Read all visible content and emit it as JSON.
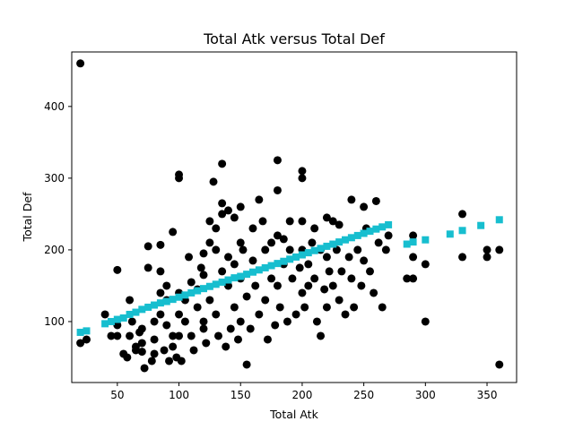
{
  "chart_data": {
    "type": "scatter",
    "title": "Total Atk versus Total Def",
    "xlabel": "Total Atk",
    "ylabel": "Total Def",
    "xlim": [
      13,
      374
    ],
    "ylim": [
      15,
      476
    ],
    "xticks": [
      50,
      100,
      150,
      200,
      250,
      300,
      350
    ],
    "yticks": [
      100,
      200,
      300,
      400
    ],
    "grid": false,
    "colors": {
      "points": "#000000",
      "fit": "#17becf"
    },
    "series": [
      {
        "marker": "circle",
        "points": [
          [
            20,
            460
          ],
          [
            20,
            70
          ],
          [
            25,
            75
          ],
          [
            45,
            80
          ],
          [
            40,
            110
          ],
          [
            50,
            80
          ],
          [
            50,
            95
          ],
          [
            50,
            172
          ],
          [
            55,
            55
          ],
          [
            58,
            50
          ],
          [
            60,
            80
          ],
          [
            60,
            130
          ],
          [
            62,
            100
          ],
          [
            65,
            60
          ],
          [
            65,
            65
          ],
          [
            68,
            85
          ],
          [
            70,
            58
          ],
          [
            70,
            70
          ],
          [
            70,
            90
          ],
          [
            72,
            35
          ],
          [
            75,
            205
          ],
          [
            75,
            175
          ],
          [
            78,
            45
          ],
          [
            80,
            55
          ],
          [
            80,
            75
          ],
          [
            80,
            100
          ],
          [
            85,
            207
          ],
          [
            85,
            170
          ],
          [
            85,
            110
          ],
          [
            85,
            140
          ],
          [
            88,
            60
          ],
          [
            90,
            95
          ],
          [
            90,
            150
          ],
          [
            90,
            130
          ],
          [
            92,
            45
          ],
          [
            95,
            225
          ],
          [
            95,
            80
          ],
          [
            95,
            65
          ],
          [
            98,
            50
          ],
          [
            100,
            305
          ],
          [
            100,
            300
          ],
          [
            100,
            80
          ],
          [
            100,
            110
          ],
          [
            100,
            140
          ],
          [
            102,
            45
          ],
          [
            105,
            100
          ],
          [
            105,
            130
          ],
          [
            108,
            190
          ],
          [
            110,
            80
          ],
          [
            110,
            155
          ],
          [
            112,
            60
          ],
          [
            115,
            120
          ],
          [
            115,
            145
          ],
          [
            118,
            175
          ],
          [
            120,
            195
          ],
          [
            120,
            90
          ],
          [
            120,
            100
          ],
          [
            120,
            165
          ],
          [
            122,
            70
          ],
          [
            125,
            210
          ],
          [
            125,
            240
          ],
          [
            125,
            130
          ],
          [
            128,
            295
          ],
          [
            130,
            200
          ],
          [
            130,
            230
          ],
          [
            130,
            110
          ],
          [
            132,
            80
          ],
          [
            135,
            320
          ],
          [
            135,
            265
          ],
          [
            135,
            250
          ],
          [
            135,
            170
          ],
          [
            138,
            65
          ],
          [
            140,
            255
          ],
          [
            140,
            150
          ],
          [
            140,
            190
          ],
          [
            142,
            90
          ],
          [
            145,
            245
          ],
          [
            145,
            180
          ],
          [
            145,
            120
          ],
          [
            148,
            75
          ],
          [
            150,
            260
          ],
          [
            150,
            210
          ],
          [
            150,
            160
          ],
          [
            150,
            100
          ],
          [
            152,
            200
          ],
          [
            155,
            40
          ],
          [
            155,
            135
          ],
          [
            158,
            90
          ],
          [
            160,
            230
          ],
          [
            160,
            185
          ],
          [
            162,
            150
          ],
          [
            165,
            270
          ],
          [
            165,
            110
          ],
          [
            168,
            240
          ],
          [
            170,
            200
          ],
          [
            170,
            130
          ],
          [
            172,
            75
          ],
          [
            175,
            210
          ],
          [
            175,
            160
          ],
          [
            178,
            95
          ],
          [
            180,
            325
          ],
          [
            180,
            283
          ],
          [
            180,
            220
          ],
          [
            180,
            150
          ],
          [
            182,
            120
          ],
          [
            185,
            215
          ],
          [
            185,
            180
          ],
          [
            188,
            100
          ],
          [
            190,
            240
          ],
          [
            190,
            200
          ],
          [
            192,
            160
          ],
          [
            195,
            110
          ],
          [
            198,
            175
          ],
          [
            200,
            310
          ],
          [
            200,
            300
          ],
          [
            200,
            240
          ],
          [
            200,
            200
          ],
          [
            200,
            140
          ],
          [
            202,
            120
          ],
          [
            205,
            180
          ],
          [
            205,
            150
          ],
          [
            208,
            210
          ],
          [
            210,
            230
          ],
          [
            210,
            160
          ],
          [
            212,
            100
          ],
          [
            215,
            80
          ],
          [
            215,
            200
          ],
          [
            218,
            145
          ],
          [
            220,
            245
          ],
          [
            220,
            190
          ],
          [
            220,
            120
          ],
          [
            222,
            170
          ],
          [
            225,
            240
          ],
          [
            225,
            150
          ],
          [
            228,
            200
          ],
          [
            230,
            235
          ],
          [
            230,
            130
          ],
          [
            232,
            170
          ],
          [
            235,
            110
          ],
          [
            238,
            190
          ],
          [
            240,
            270
          ],
          [
            240,
            160
          ],
          [
            242,
            120
          ],
          [
            245,
            200
          ],
          [
            248,
            150
          ],
          [
            250,
            260
          ],
          [
            250,
            185
          ],
          [
            252,
            230
          ],
          [
            255,
            170
          ],
          [
            258,
            140
          ],
          [
            260,
            268
          ],
          [
            262,
            210
          ],
          [
            265,
            120
          ],
          [
            268,
            200
          ],
          [
            270,
            220
          ],
          [
            285,
            160
          ],
          [
            290,
            220
          ],
          [
            290,
            190
          ],
          [
            290,
            160
          ],
          [
            300,
            180
          ],
          [
            300,
            100
          ],
          [
            330,
            250
          ],
          [
            330,
            190
          ],
          [
            350,
            200
          ],
          [
            350,
            190
          ],
          [
            360,
            200
          ],
          [
            360,
            40
          ]
        ]
      },
      {
        "marker": "square",
        "points": [
          [
            20,
            85
          ],
          [
            25,
            87
          ],
          [
            40,
            97
          ],
          [
            45,
            100
          ],
          [
            50,
            103
          ],
          [
            55,
            105
          ],
          [
            60,
            110
          ],
          [
            65,
            113
          ],
          [
            70,
            117
          ],
          [
            75,
            120
          ],
          [
            80,
            123
          ],
          [
            85,
            126
          ],
          [
            90,
            128
          ],
          [
            95,
            131
          ],
          [
            100,
            134
          ],
          [
            105,
            137
          ],
          [
            110,
            140
          ],
          [
            115,
            143
          ],
          [
            120,
            146
          ],
          [
            125,
            149
          ],
          [
            130,
            152
          ],
          [
            135,
            155
          ],
          [
            140,
            158
          ],
          [
            145,
            161
          ],
          [
            150,
            163
          ],
          [
            155,
            166
          ],
          [
            160,
            169
          ],
          [
            165,
            172
          ],
          [
            170,
            175
          ],
          [
            175,
            178
          ],
          [
            180,
            181
          ],
          [
            185,
            184
          ],
          [
            190,
            187
          ],
          [
            195,
            190
          ],
          [
            200,
            193
          ],
          [
            205,
            196
          ],
          [
            210,
            199
          ],
          [
            215,
            202
          ],
          [
            220,
            205
          ],
          [
            225,
            208
          ],
          [
            230,
            211
          ],
          [
            235,
            214
          ],
          [
            240,
            217
          ],
          [
            245,
            220
          ],
          [
            250,
            223
          ],
          [
            255,
            226
          ],
          [
            260,
            229
          ],
          [
            265,
            232
          ],
          [
            270,
            235
          ],
          [
            285,
            208
          ],
          [
            290,
            211
          ],
          [
            300,
            214
          ],
          [
            320,
            222
          ],
          [
            330,
            227
          ],
          [
            345,
            234
          ],
          [
            360,
            242
          ]
        ]
      }
    ]
  }
}
